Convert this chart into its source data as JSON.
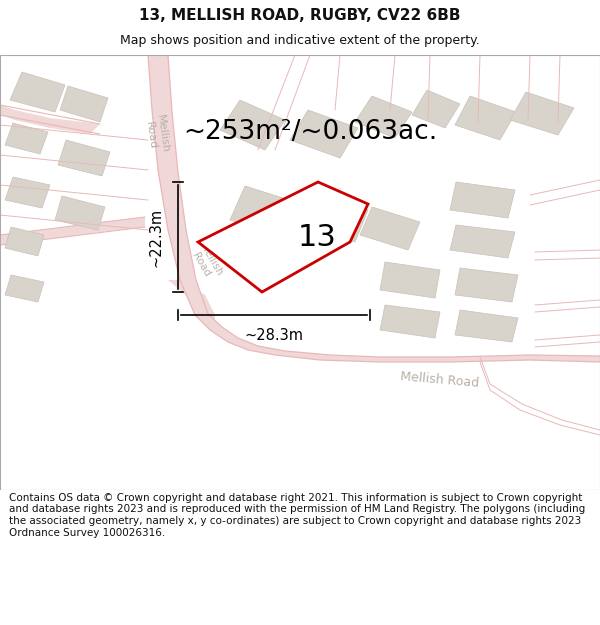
{
  "title": "13, MELLISH ROAD, RUGBY, CV22 6BB",
  "subtitle": "Map shows position and indicative extent of the property.",
  "area_label": "~253m²/~0.063ac.",
  "plot_number": "13",
  "dim_width": "~28.3m",
  "dim_height": "~22.3m",
  "footer": "Contains OS data © Crown copyright and database right 2021. This information is subject to Crown copyright and database rights 2023 and is reproduced with the permission of HM Land Registry. The polygons (including the associated geometry, namely x, y co-ordinates) are subject to Crown copyright and database rights 2023 Ordnance Survey 100026316.",
  "map_bg": "#f8f6f4",
  "road_line_color": "#e8b8b8",
  "road_fill_color": "#f0d8d8",
  "building_color": "#d8d4cc",
  "building_edge": "#c8c0b8",
  "road_label_color": "#b8b0a8",
  "red_plot_color": "#cc0000",
  "title_fontsize": 11,
  "subtitle_fontsize": 9,
  "area_fontsize": 19,
  "plot_num_fontsize": 22,
  "dim_fontsize": 10.5,
  "footer_fontsize": 7.5,
  "title_color": "#111111",
  "subtitle_color": "#111111",
  "dim_color": "#111111"
}
